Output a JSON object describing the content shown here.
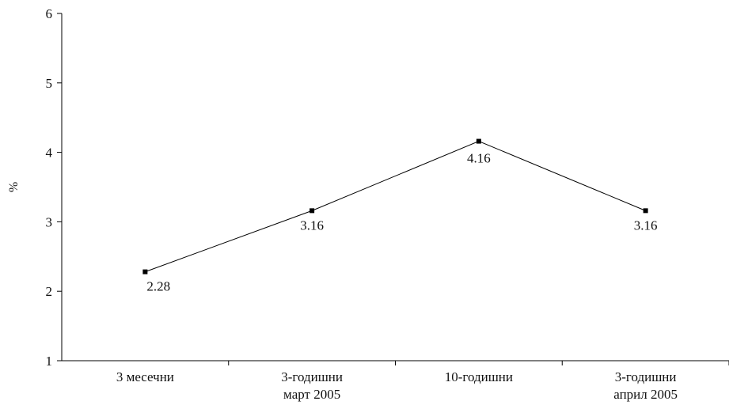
{
  "chart_data": {
    "type": "line",
    "title": "",
    "xlabel": "",
    "ylabel": "%",
    "ylim": [
      1,
      6
    ],
    "yticks": [
      1,
      2,
      3,
      4,
      5,
      6
    ],
    "grid": false,
    "categories": [
      [
        "3 месечни"
      ],
      [
        "3-годишни",
        "март 2005"
      ],
      [
        "10-годишни"
      ],
      [
        "3-годишни",
        "април 2005"
      ]
    ],
    "series": [
      {
        "values": [
          2.28,
          3.16,
          4.16,
          3.16
        ],
        "labels": [
          "2.28",
          "3.16",
          "4.16",
          "3.16"
        ]
      }
    ],
    "colors": {
      "line": "#000000",
      "marker": "#000000",
      "axis": "#000000",
      "text": "#111111"
    }
  }
}
